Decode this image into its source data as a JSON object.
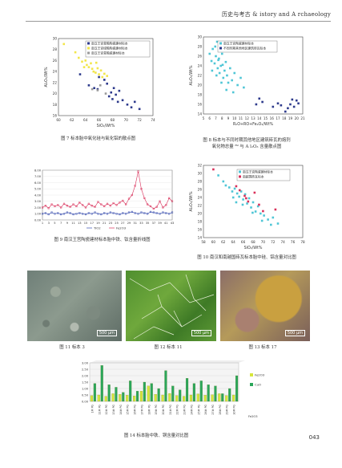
{
  "header": {
    "title": "历史与考古 & istory and A rchaeology"
  },
  "page_number": "043",
  "colors": {
    "yellow": "#f2e64a",
    "cyan": "#4fc6d6",
    "navy": "#2d3a8c",
    "red": "#d9305a",
    "green": "#2aa65a",
    "lightgreen": "#d6e63a",
    "gray": "#9a9a9a",
    "pink": "#e07c9a"
  },
  "figures": {
    "fig7": {
      "caption": "图 7  标本胎中氧化硅与氧化铝的散点图",
      "legend": [
        "南汉王宫青釉陶瓷建材标本",
        "南汉王宫绿釉陶瓷建材标本",
        "南汉王宫青釉瓷建材标本"
      ]
    },
    "fig8": {
      "caption_line1": "图 8 标本与不同时期其他地区建筑砖瓦的熔剂",
      "caption_line2": "氧化物总量 ⁸⁹ 与 A l₂O₃ 含量散点图",
      "legend": [
        "南汉王宫陶瓷建材标本",
        "不同时期其他地区建筑砖瓦标本"
      ]
    },
    "fig9": {
      "caption": "图 9 南汉王宫陶瓷建材标本胎中铁、钛含量折线图",
      "legend": [
        "TiO2",
        "Fe2O3"
      ]
    },
    "fig10": {
      "caption": "图 10 南汉和南越国砖瓦标本胎中硅、铝含量对比图",
      "legend": [
        "南汉王宫陶瓷建材标本",
        "南越国砖瓦标本"
      ]
    },
    "fig11": {
      "caption": "图 11 标本 3",
      "scale": "500 μm"
    },
    "fig12": {
      "caption": "图 12 标本 11",
      "scale": "500 μm"
    },
    "fig13": {
      "caption": "图 13 标本 17",
      "scale": "500 μm"
    },
    "fig14": {
      "caption": "图 14 标本胎中铁、铜含量对比图",
      "legend": [
        "Fe2O3",
        "CuO"
      ],
      "axis_legend": "Fe2O3"
    }
  },
  "chart_data": [
    {
      "id": "fig7",
      "type": "scatter",
      "xlabel": "SiO₂/Wt%",
      "ylabel": "Al₂O₃/Wt%",
      "xlim": [
        60,
        74
      ],
      "ylim": [
        16,
        30
      ],
      "xticks": [
        "60",
        "62",
        "64",
        "66",
        "68",
        "70",
        "72",
        "74"
      ],
      "yticks": [
        "16",
        "18",
        "20",
        "22",
        "24",
        "26",
        "28",
        "30"
      ],
      "series": [
        {
          "name": "南汉王宫青釉陶瓷建材标本",
          "marker": "square",
          "color": "#2d3a8c",
          "x": [
            63.2,
            64.5,
            65.3,
            65.8,
            66.8,
            67.2,
            67.5,
            67.8,
            68.0,
            68.2,
            68.8,
            69.0,
            69.5,
            70.2,
            70.8,
            71.3,
            72.0,
            66.0,
            68.5
          ],
          "y": [
            23.5,
            21.5,
            21.0,
            20.8,
            22.5,
            21.8,
            19.5,
            20.2,
            19.0,
            21.0,
            18.5,
            20.5,
            18.8,
            18.0,
            17.5,
            18.5,
            17.2,
            23.0,
            19.8
          ]
        },
        {
          "name": "南汉王宫绿釉陶瓷建材标本",
          "marker": "square",
          "color": "#f2e64a",
          "x": [
            60.8,
            62.5,
            63.0,
            63.5,
            64.0,
            64.2,
            64.5,
            64.8,
            65.0,
            65.2,
            65.5,
            65.8,
            66.0,
            66.3,
            66.5,
            66.8,
            67.2,
            63.8,
            65.6
          ],
          "y": [
            29.0,
            27.5,
            26.5,
            25.8,
            26.0,
            25.2,
            24.8,
            25.5,
            24.5,
            24.0,
            23.8,
            24.6,
            23.5,
            24.2,
            23.0,
            23.6,
            23.2,
            24.8,
            25.6
          ]
        },
        {
          "name": "南汉王宫青釉瓷建材标本",
          "marker": "square",
          "color": "#9a9a9a",
          "x": [
            65.0,
            65.8,
            66.2,
            67.0
          ],
          "y": [
            20.8,
            20.6,
            21.5,
            20.0
          ]
        }
      ]
    },
    {
      "id": "fig8",
      "type": "scatter",
      "xlabel": "R₂O+RO+Fe₂O₃/Wt%",
      "ylabel": "Al₂O₃/Wt%",
      "xlim": [
        5,
        21
      ],
      "ylim": [
        14,
        30
      ],
      "xticks": [
        "5",
        "6",
        "7",
        "8",
        "9",
        "10",
        "11",
        "12",
        "13",
        "14",
        "15",
        "16",
        "17",
        "18",
        "19",
        "20",
        "21"
      ],
      "yticks": [
        "14",
        "16",
        "18",
        "20",
        "22",
        "24",
        "26",
        "28",
        "30"
      ],
      "series": [
        {
          "name": "南汉王宫陶瓷建材标本",
          "marker": "square",
          "color": "#4fc6d6",
          "x": [
            6.0,
            6.3,
            6.5,
            6.8,
            7.0,
            7.2,
            7.3,
            7.5,
            7.6,
            7.8,
            8.0,
            8.2,
            8.4,
            8.6,
            8.8,
            9.0,
            9.3,
            9.6,
            10.0,
            10.5,
            11.0,
            11.5,
            6.4,
            7.1,
            7.9,
            8.7,
            9.8,
            6.9,
            7.4,
            8.1
          ],
          "y": [
            26.5,
            25.0,
            27.5,
            24.5,
            26.0,
            29.0,
            23.5,
            25.5,
            22.5,
            24.0,
            26.5,
            21.5,
            23.0,
            24.8,
            22.0,
            20.5,
            23.5,
            21.0,
            22.5,
            20.0,
            21.5,
            19.5,
            23.0,
            22.0,
            20.5,
            19.0,
            18.5,
            28.0,
            25.2,
            24.2
          ]
        },
        {
          "name": "不同时期其他地区建筑砖瓦标本",
          "marker": "square",
          "color": "#2d3a8c",
          "x": [
            13.5,
            14.0,
            14.5,
            16.2,
            17.0,
            17.5,
            18.2,
            18.6,
            19.0,
            19.3,
            19.6,
            20.0,
            20.3
          ],
          "y": [
            16.0,
            17.2,
            16.5,
            15.5,
            16.2,
            15.8,
            14.5,
            15.2,
            16.0,
            17.0,
            15.5,
            16.8,
            16.2
          ]
        }
      ]
    },
    {
      "id": "fig9",
      "type": "line",
      "xlabel": "",
      "ylabel": "",
      "ylim": [
        0,
        8
      ],
      "yticks": [
        "0.00",
        "1.00",
        "2.00",
        "3.00",
        "4.00",
        "5.00",
        "6.00",
        "7.00",
        "8.00"
      ],
      "xticks": [
        "1",
        "3",
        "5",
        "7",
        "9",
        "11",
        "13",
        "15",
        "17",
        "19",
        "21",
        "23",
        "25",
        "27",
        "29",
        "31",
        "33",
        "35",
        "37",
        "39",
        "41",
        "43"
      ],
      "x": [
        1,
        2,
        3,
        4,
        5,
        6,
        7,
        8,
        9,
        10,
        11,
        12,
        13,
        14,
        15,
        16,
        17,
        18,
        19,
        20,
        21,
        22,
        23,
        24,
        25,
        26,
        27,
        28,
        29,
        30,
        31,
        32,
        33,
        34,
        35,
        36,
        37,
        38,
        39,
        40,
        41,
        42,
        43
      ],
      "series": [
        {
          "name": "TiO2",
          "color": "#3a4fb0",
          "values": [
            1.0,
            1.1,
            0.9,
            1.2,
            1.0,
            1.1,
            0.9,
            1.0,
            1.2,
            1.1,
            0.9,
            1.0,
            1.1,
            1.0,
            0.9,
            1.1,
            1.0,
            1.2,
            1.0,
            0.9,
            1.1,
            1.0,
            1.2,
            1.1,
            1.0,
            0.9,
            1.1,
            1.0,
            1.2,
            1.3,
            1.1,
            1.0,
            1.2,
            1.1,
            1.0,
            1.3,
            1.2,
            1.1,
            1.0,
            1.2,
            1.1,
            1.0,
            1.2
          ]
        },
        {
          "name": "Fe2O3",
          "color": "#d9305a",
          "values": [
            2.0,
            2.3,
            1.9,
            2.5,
            2.2,
            2.4,
            2.0,
            2.6,
            2.3,
            2.1,
            2.5,
            2.2,
            2.8,
            2.4,
            2.0,
            2.6,
            2.3,
            2.1,
            2.9,
            2.5,
            2.2,
            2.6,
            2.3,
            2.7,
            2.4,
            2.8,
            3.1,
            2.5,
            3.4,
            4.0,
            5.5,
            7.8,
            5.0,
            3.5,
            2.5,
            2.2,
            1.8,
            2.1,
            3.0,
            2.0,
            2.4,
            3.5,
            3.0
          ]
        }
      ]
    },
    {
      "id": "fig10",
      "type": "scatter",
      "xlabel": "SiO₂/Wt%",
      "ylabel": "Al₂O₃/Wt%",
      "xlim": [
        58,
        78
      ],
      "ylim": [
        14,
        32
      ],
      "xticks": [
        "58",
        "60",
        "62",
        "64",
        "66",
        "68",
        "70",
        "72",
        "74",
        "76",
        "78"
      ],
      "yticks": [
        "14",
        "16",
        "18",
        "20",
        "22",
        "24",
        "26",
        "28",
        "30",
        "32"
      ],
      "series": [
        {
          "name": "南汉王宫陶瓷建材标本",
          "marker": "square",
          "color": "#4fc6d6",
          "x": [
            61.0,
            62.5,
            63.2,
            63.8,
            64.3,
            64.8,
            65.2,
            65.6,
            66.0,
            66.4,
            66.8,
            67.2,
            67.6,
            68.0,
            68.5,
            69.0,
            69.5,
            70.2,
            71.0,
            72.0,
            73.0,
            64.0,
            65.9,
            67.9,
            62.0,
            69.8,
            71.6,
            64.6
          ],
          "y": [
            29.5,
            27.0,
            26.5,
            25.5,
            26.2,
            25.0,
            24.2,
            25.5,
            23.5,
            24.8,
            22.5,
            23.8,
            21.5,
            22.8,
            20.5,
            21.8,
            20.0,
            19.5,
            18.5,
            19.0,
            17.5,
            24.0,
            22.2,
            20.2,
            28.0,
            18.2,
            17.2,
            22.8
          ]
        },
        {
          "name": "南越国砖瓦标本",
          "marker": "square",
          "color": "#d9305a",
          "x": [
            60.0,
            64.6,
            65.3,
            66.3,
            67.0,
            68.3,
            69.2,
            70.0,
            72.5,
            66.6
          ],
          "y": [
            31.0,
            26.8,
            25.8,
            24.4,
            23.0,
            25.2,
            22.2,
            20.6,
            21.0,
            23.8
          ]
        }
      ]
    },
    {
      "id": "fig14",
      "type": "bar",
      "ylim": [
        0,
        3
      ],
      "yticks": [
        "0.00",
        "0.50",
        "1.00",
        "1.50",
        "2.00",
        "2.50",
        "3.00"
      ],
      "categories": [
        "1# PG",
        "11# PG",
        "12# PG",
        "13# PG",
        "14# PG",
        "15# PG",
        "16# PG",
        "17# PG",
        "18# PG",
        "19# PG",
        "20# PG",
        "21# PG",
        "22# PG",
        "23# PG",
        "24# PG",
        "25# PG",
        "26# PG",
        "27# PG",
        "28# PG",
        "29# PG",
        "30# PG"
      ],
      "series": [
        {
          "name": "Fe2O3",
          "color": "#d6e63a",
          "values": [
            0.45,
            0.5,
            0.4,
            0.6,
            0.55,
            0.48,
            0.42,
            0.8,
            1.2,
            0.55,
            0.5,
            0.62,
            0.45,
            0.4,
            0.5,
            0.58,
            0.48,
            0.52,
            0.6,
            0.45,
            0.5
          ]
        },
        {
          "name": "CuO",
          "color": "#2aa65a",
          "values": [
            1.4,
            2.8,
            1.3,
            1.1,
            0.7,
            1.6,
            0.8,
            1.5,
            1.4,
            1.0,
            2.4,
            1.2,
            0.9,
            1.8,
            1.4,
            1.6,
            1.3,
            1.2,
            0.6,
            1.0,
            2.0
          ]
        }
      ]
    }
  ]
}
